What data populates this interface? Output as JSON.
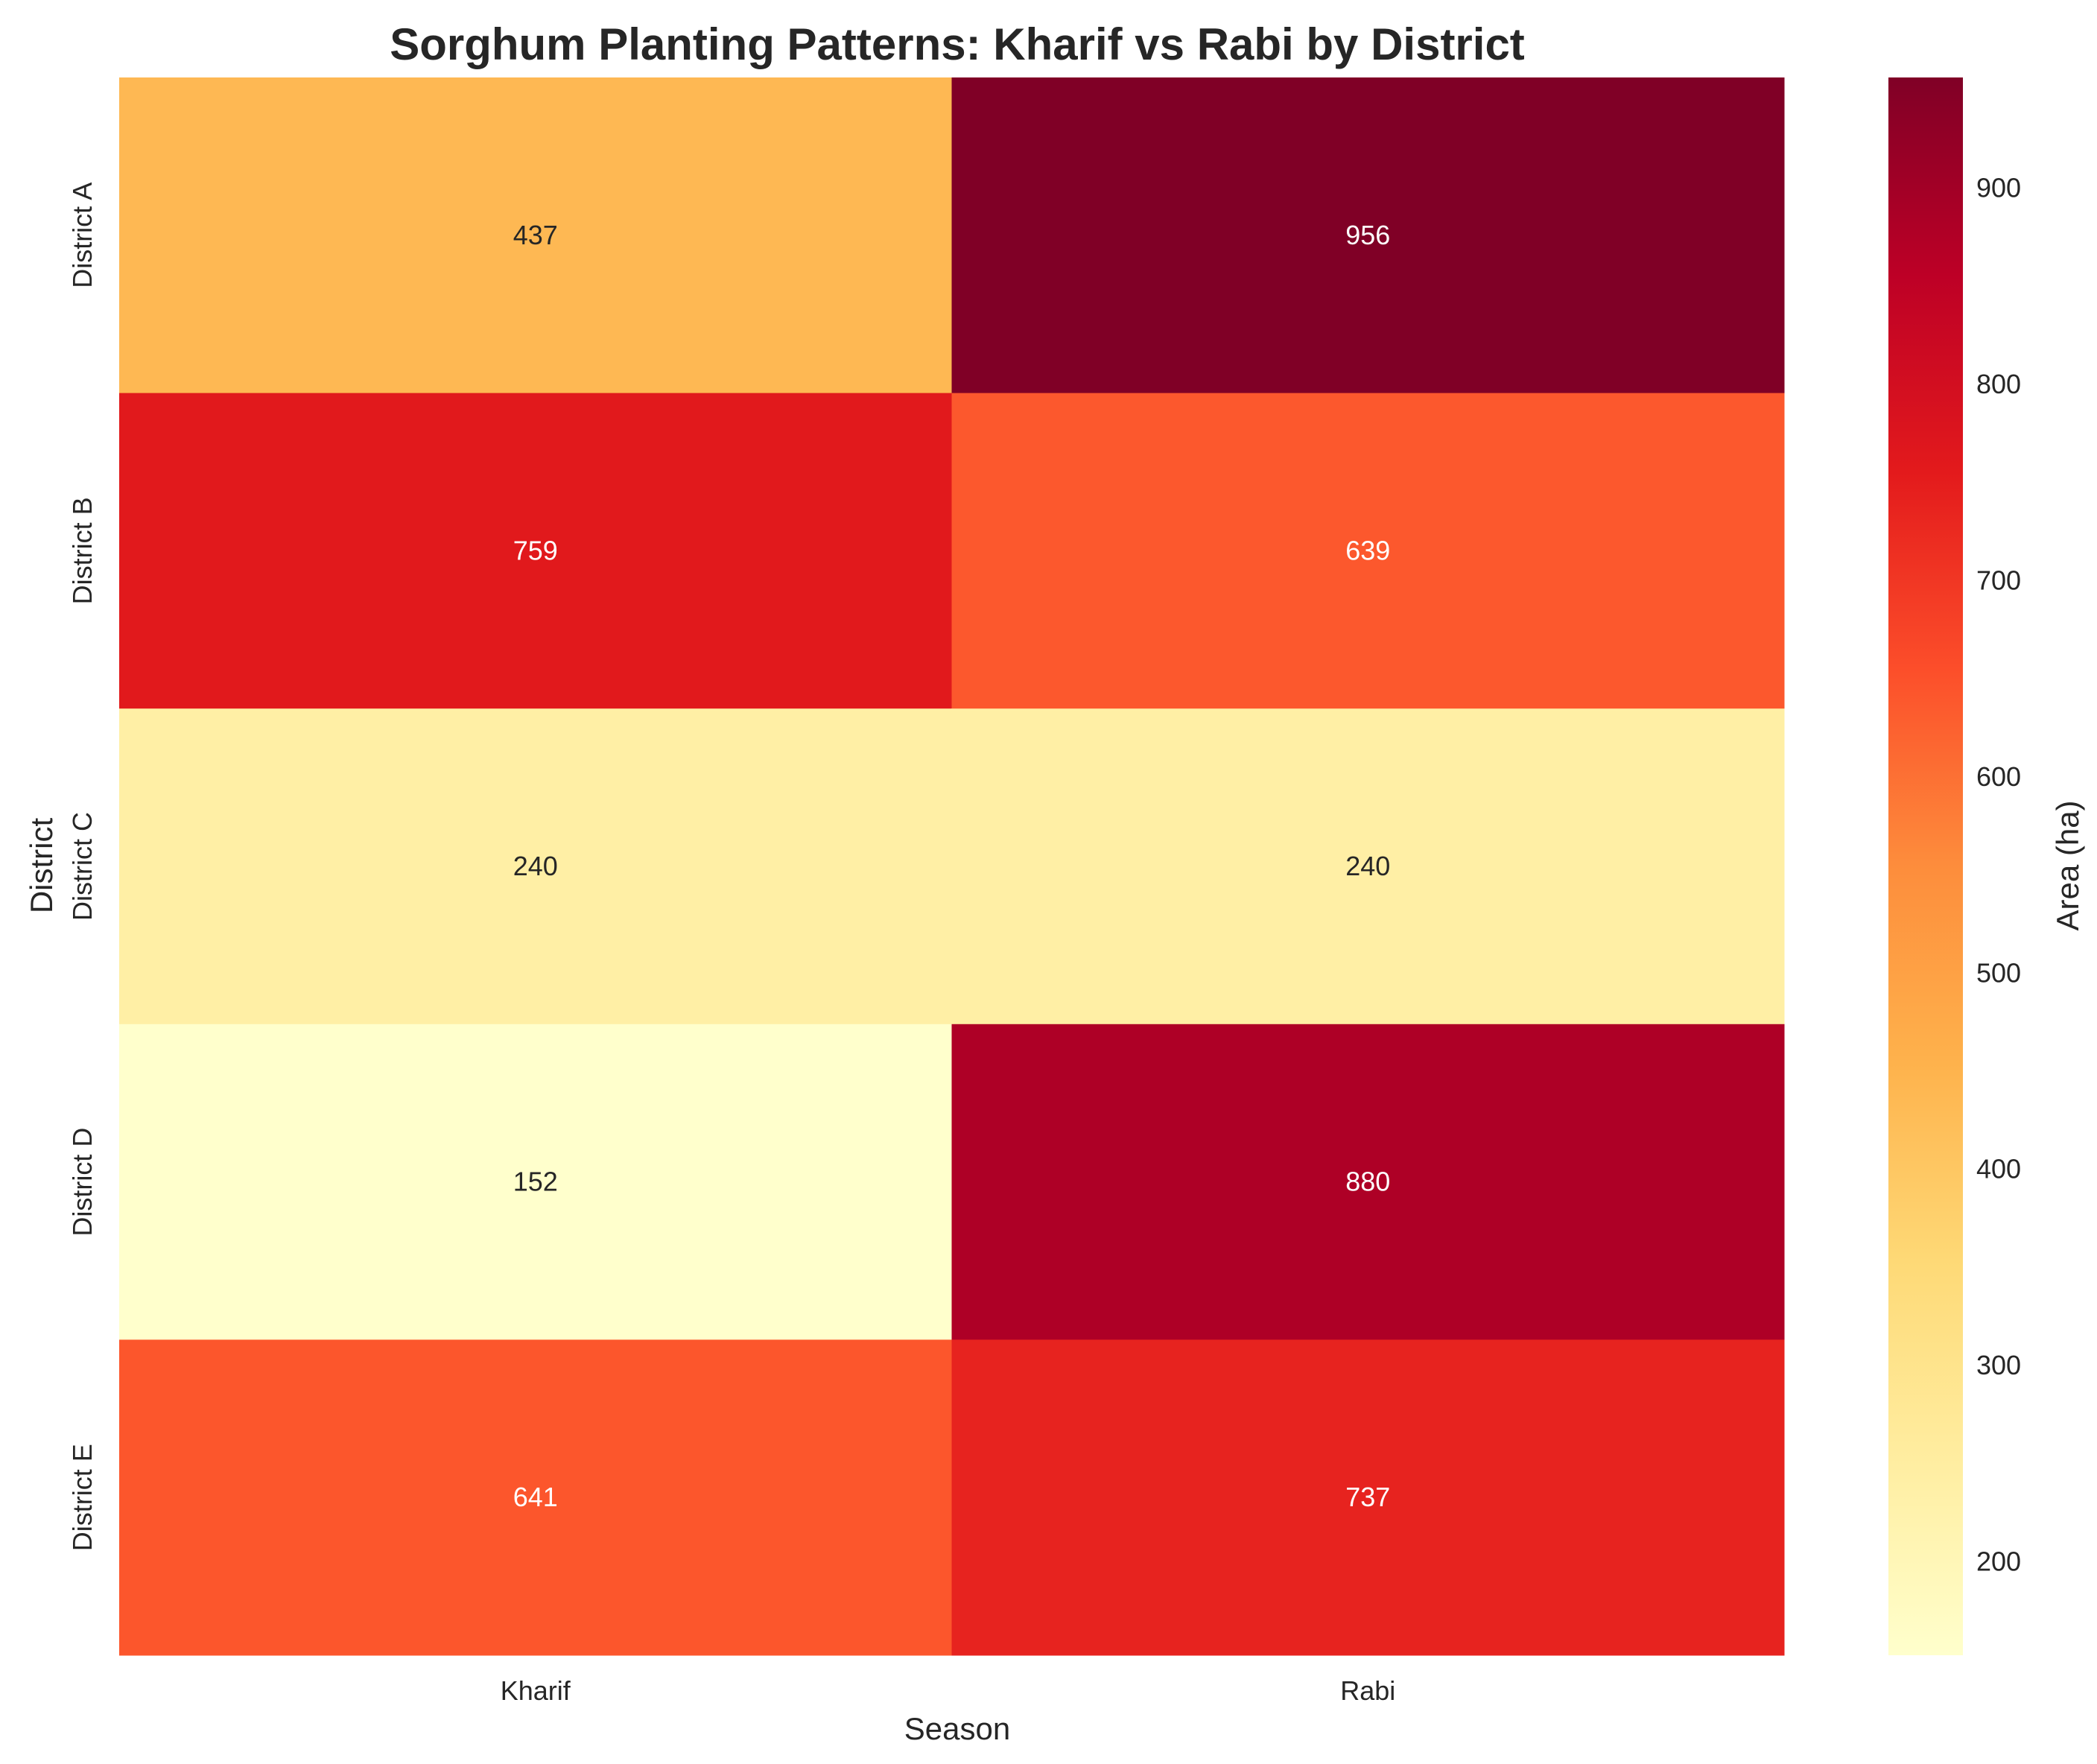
{
  "chart_data": {
    "type": "heatmap",
    "title": "Sorghum Planting Patterns: Kharif vs Rabi by District",
    "xlabel": "Season",
    "ylabel": "District",
    "x_categories": [
      "Kharif",
      "Rabi"
    ],
    "y_categories": [
      "District A",
      "District B",
      "District C",
      "District D",
      "District E"
    ],
    "values": [
      [
        437,
        956
      ],
      [
        759,
        639
      ],
      [
        240,
        240
      ],
      [
        152,
        880
      ],
      [
        641,
        737
      ]
    ],
    "colorbar": {
      "label": "Area (ha)",
      "range": [
        152,
        956
      ],
      "ticks": [
        200,
        300,
        400,
        500,
        600,
        700,
        800,
        900
      ],
      "colormap": "YlOrRd"
    }
  }
}
